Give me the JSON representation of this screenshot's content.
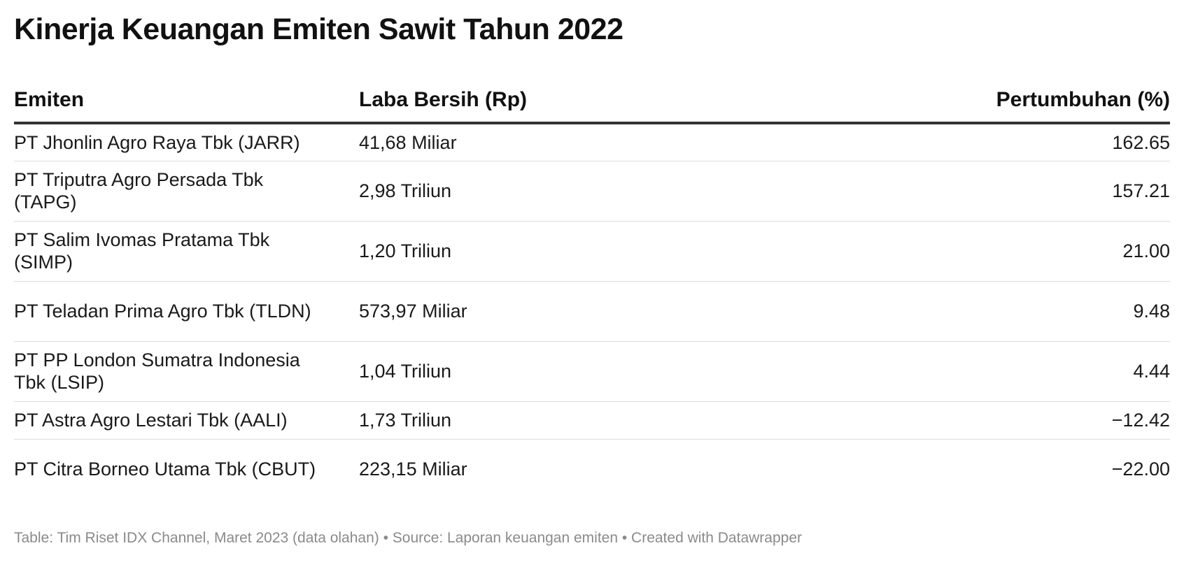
{
  "title": "Kinerja Keuangan Emiten Sawit Tahun 2022",
  "chart_data": {
    "type": "table",
    "title": "Kinerja Keuangan Emiten Sawit Tahun 2022",
    "columns": [
      "Emiten",
      "Laba Bersih (Rp)",
      "Pertumbuhan (%)"
    ],
    "rows": [
      {
        "emiten": "PT Jhonlin Agro Raya Tbk (JARR)",
        "laba": "41,68 Miliar",
        "pertumbuhan": "162.65"
      },
      {
        "emiten": "PT Triputra Agro Persada Tbk (TAPG)",
        "laba": "2,98 Triliun",
        "pertumbuhan": "157.21"
      },
      {
        "emiten": "PT Salim Ivomas Pratama Tbk (SIMP)",
        "laba": "1,20 Triliun",
        "pertumbuhan": "21.00"
      },
      {
        "emiten": "PT Teladan Prima Agro Tbk (TLDN)",
        "laba": "573,97 Miliar",
        "pertumbuhan": "9.48"
      },
      {
        "emiten": "PT PP London Sumatra Indonesia Tbk (LSIP)",
        "laba": "1,04 Triliun",
        "pertumbuhan": "4.44"
      },
      {
        "emiten": "PT Astra Agro Lestari Tbk (AALI)",
        "laba": "1,73 Triliun",
        "pertumbuhan": "−12.42"
      },
      {
        "emiten": "PT Citra Borneo Utama Tbk (CBUT)",
        "laba": "223,15 Miliar",
        "pertumbuhan": "−22.00"
      }
    ]
  },
  "footer": "Table: Tim Riset IDX Channel, Maret 2023 (data olahan) • Source: Laporan keuangan emiten • Created with Datawrapper"
}
